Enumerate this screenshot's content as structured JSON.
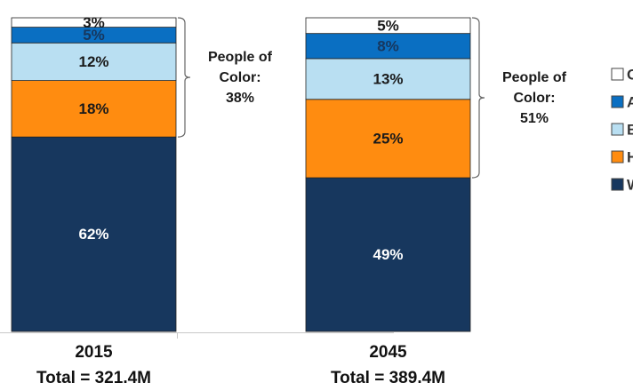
{
  "chart_data": {
    "type": "bar",
    "stacked": true,
    "percent_stacked": true,
    "title": "",
    "xlabel": "",
    "ylabel": "",
    "ylim": [
      0,
      100
    ],
    "grid": false,
    "legend_position": "right",
    "categories": [
      "2015",
      "2045"
    ],
    "category_subtitles": [
      "Total = 321.4M",
      "Total = 389.4M"
    ],
    "series": [
      {
        "name": "W",
        "color": "#17375e",
        "label_color": "#ffffff",
        "values": [
          62,
          49
        ]
      },
      {
        "name": "H",
        "color": "#ff8c10",
        "label_color": "#1a1a1a",
        "values": [
          18,
          25
        ]
      },
      {
        "name": "B",
        "color": "#b9dff2",
        "label_color": "#1a1a1a",
        "values": [
          12,
          13
        ]
      },
      {
        "name": "A",
        "color": "#0a6fc2",
        "label_color": "#17375e",
        "values": [
          5,
          8
        ]
      },
      {
        "name": "O",
        "color": "#ffffff",
        "label_color": "#1a1a1a",
        "values": [
          3,
          5
        ]
      }
    ],
    "legend_order": [
      "O",
      "A",
      "B",
      "H",
      "W"
    ],
    "annotations": [
      {
        "category": "2015",
        "line1": "People of",
        "line2": "Color:",
        "line3": "38%",
        "value": 38
      },
      {
        "category": "2045",
        "line1": "People of",
        "line2": "Color:",
        "line3": "51%",
        "value": 51
      }
    ]
  }
}
